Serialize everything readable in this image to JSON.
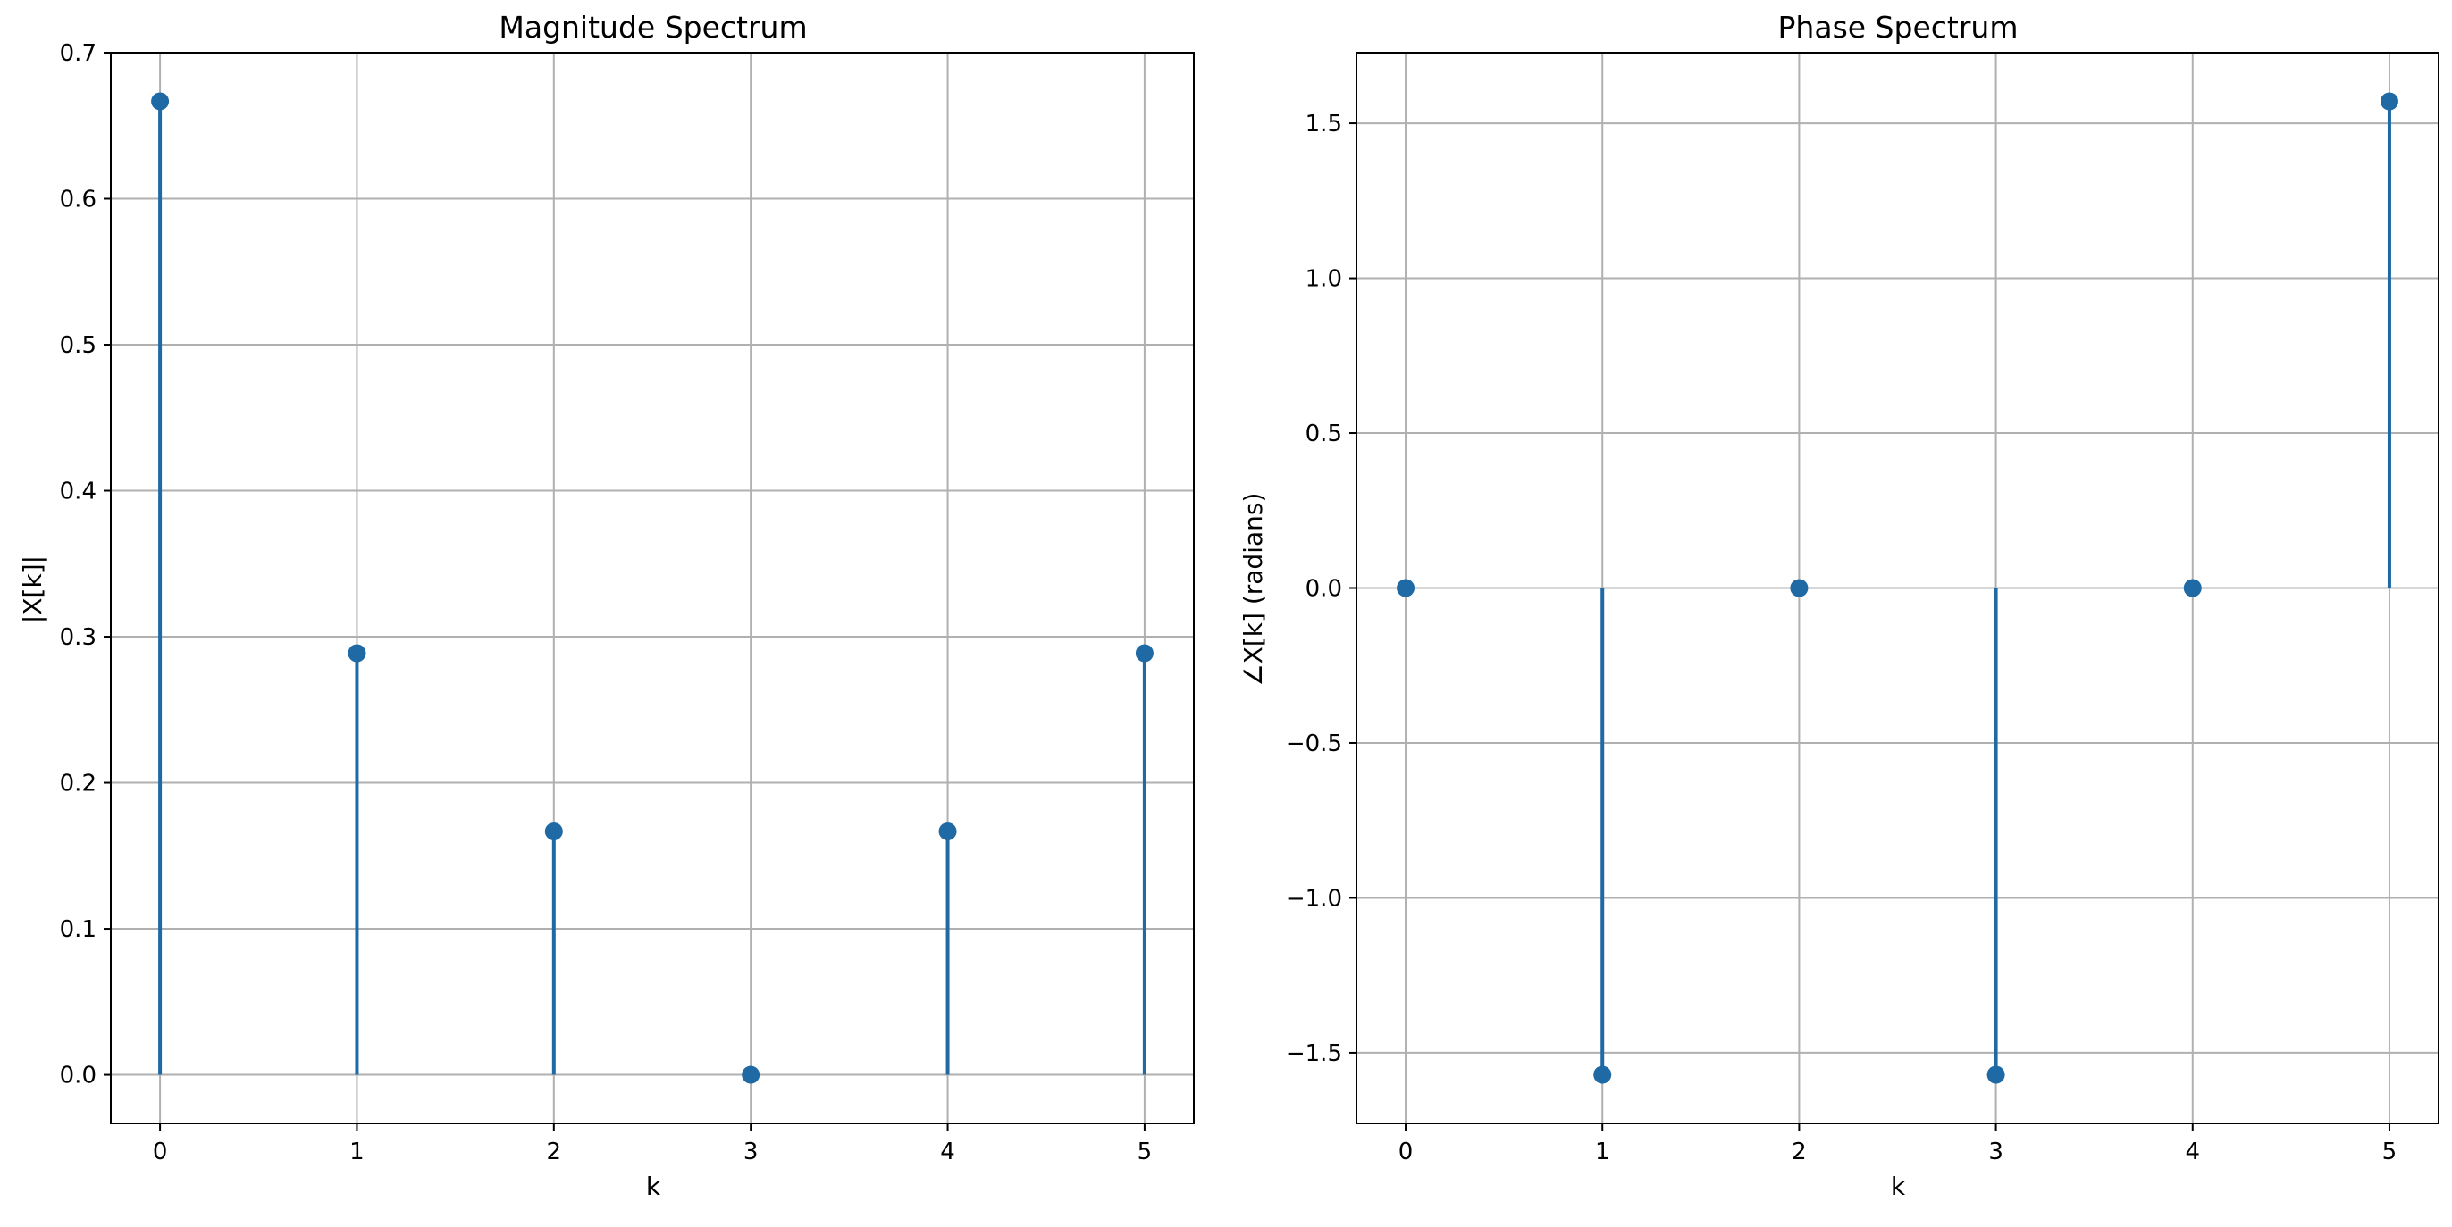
{
  "chart_data": [
    {
      "type": "stem",
      "title": "Magnitude Spectrum",
      "xlabel": "k",
      "ylabel": "|X[k]|",
      "x": [
        0,
        1,
        2,
        3,
        4,
        5
      ],
      "values": [
        0.6667,
        0.2887,
        0.1667,
        0.0,
        0.1667,
        0.2887
      ],
      "xlim": [
        -0.25,
        5.25
      ],
      "ylim": [
        -0.0333,
        0.7
      ],
      "xticks": [
        0,
        1,
        2,
        3,
        4,
        5
      ],
      "xtick_labels": [
        "0",
        "1",
        "2",
        "3",
        "4",
        "5"
      ],
      "yticks": [
        0.0,
        0.1,
        0.2,
        0.3,
        0.4,
        0.5,
        0.6,
        0.7
      ],
      "ytick_labels": [
        "0.0",
        "0.1",
        "0.2",
        "0.3",
        "0.4",
        "0.5",
        "0.6",
        "0.7"
      ],
      "grid": true,
      "color": "#1f6aa5",
      "grid_color": "#b0b0b0"
    },
    {
      "type": "stem",
      "title": "Phase Spectrum",
      "xlabel": "k",
      "ylabel": "∠X[k] (radians)",
      "x": [
        0,
        1,
        2,
        3,
        4,
        5
      ],
      "values": [
        0.0,
        -1.5708,
        0.0,
        -1.5708,
        0.0,
        1.5708
      ],
      "xlim": [
        -0.25,
        5.25
      ],
      "ylim": [
        -1.7279,
        1.7279
      ],
      "xticks": [
        0,
        1,
        2,
        3,
        4,
        5
      ],
      "xtick_labels": [
        "0",
        "1",
        "2",
        "3",
        "4",
        "5"
      ],
      "yticks": [
        -1.5,
        -1.0,
        -0.5,
        0.0,
        0.5,
        1.0,
        1.5
      ],
      "ytick_labels": [
        "−1.5",
        "−1.0",
        "−0.5",
        "0.0",
        "0.5",
        "1.0",
        "1.5"
      ],
      "grid": true,
      "color": "#1f6aa5",
      "grid_color": "#b0b0b0"
    }
  ]
}
